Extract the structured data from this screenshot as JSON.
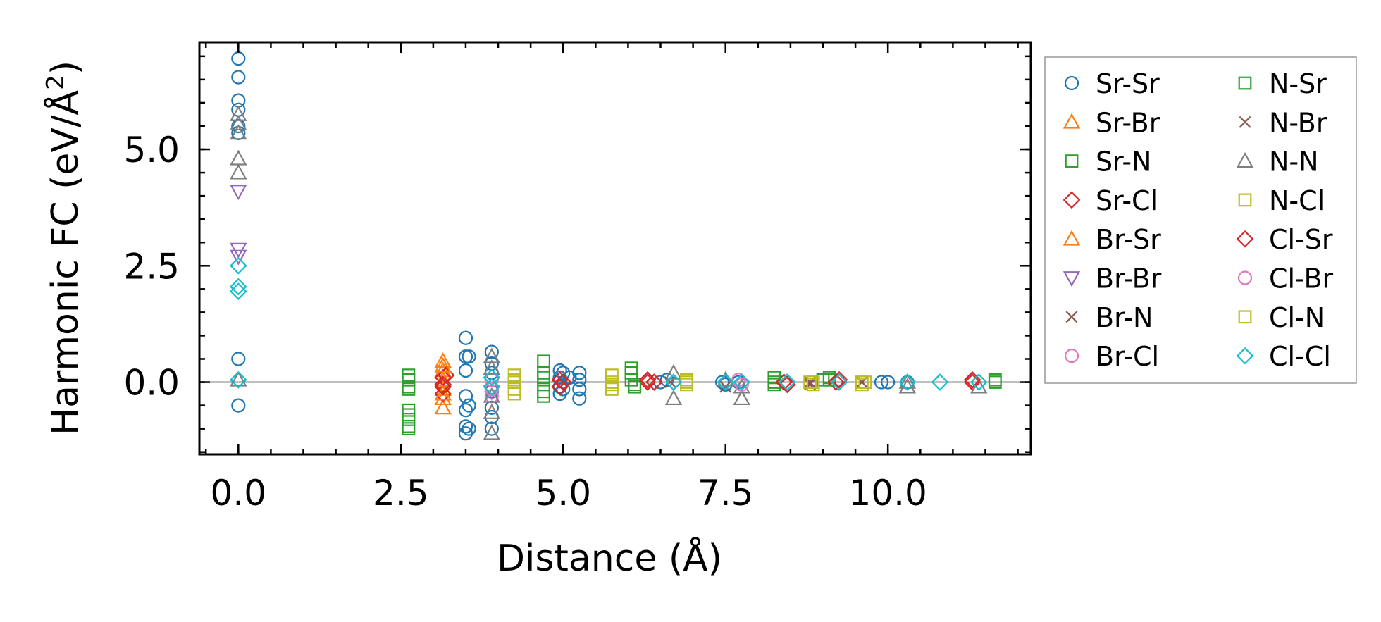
{
  "chart_data": {
    "type": "scatter",
    "title": "",
    "xlabel": "Distance (Å)",
    "ylabel_prefix": "Harmonic FC (eV/Å",
    "ylabel_sup": "2",
    "ylabel_suffix": ")",
    "xlim": [
      -0.6,
      12.2
    ],
    "ylim": [
      -1.55,
      7.3
    ],
    "xticks": [
      0.0,
      2.5,
      5.0,
      7.5,
      10.0
    ],
    "xtick_labels": [
      "0.0",
      "2.5",
      "5.0",
      "7.5",
      "10.0"
    ],
    "yticks": [
      0.0,
      2.5,
      5.0
    ],
    "ytick_labels": [
      "0.0",
      "2.5",
      "5.0"
    ],
    "x_minor_step": 0.5,
    "y_minor_step": 0.5,
    "zero_line": true,
    "grid": false,
    "legend_position": "outside-right",
    "legend_columns": 2,
    "series": [
      {
        "name": "Sr-Sr",
        "marker": "circle",
        "color": "#1f77b4",
        "points": [
          [
            0,
            6.95
          ],
          [
            0,
            6.55
          ],
          [
            0,
            6.05
          ],
          [
            0,
            5.85
          ],
          [
            0,
            5.5
          ],
          [
            0,
            5.35
          ],
          [
            0,
            0.5
          ],
          [
            0,
            -0.5
          ],
          [
            3.5,
            0.95
          ],
          [
            3.5,
            0.55
          ],
          [
            3.5,
            0.25
          ],
          [
            3.5,
            -0.3
          ],
          [
            3.5,
            -0.6
          ],
          [
            3.5,
            -0.95
          ],
          [
            3.5,
            -1.1
          ],
          [
            3.55,
            0.55
          ],
          [
            3.55,
            -0.5
          ],
          [
            3.55,
            -1.0
          ],
          [
            3.9,
            0.65
          ],
          [
            3.9,
            0.4
          ],
          [
            3.9,
            0.2
          ],
          [
            3.9,
            -0.2
          ],
          [
            3.9,
            -0.55
          ],
          [
            3.9,
            -0.75
          ],
          [
            3.9,
            -1.0
          ],
          [
            4.95,
            0.25
          ],
          [
            4.95,
            0.1
          ],
          [
            4.95,
            -0.1
          ],
          [
            4.95,
            -0.25
          ],
          [
            5.0,
            0.2
          ],
          [
            5.0,
            -0.15
          ],
          [
            5.25,
            0.2
          ],
          [
            5.25,
            0.05
          ],
          [
            5.25,
            -0.15
          ],
          [
            5.25,
            -0.35
          ],
          [
            5.1,
            0.1
          ],
          [
            6.5,
            0.0
          ],
          [
            6.6,
            0.05
          ],
          [
            7.45,
            0.0
          ],
          [
            7.5,
            -0.05
          ],
          [
            7.7,
            0.0
          ],
          [
            9.9,
            0.0
          ],
          [
            10.0,
            0.0
          ],
          [
            10.3,
            0.0
          ]
        ]
      },
      {
        "name": "Sr-Br",
        "marker": "triangle-up",
        "color": "#ff7f0e",
        "points": [
          [
            3.15,
            0.45
          ],
          [
            3.15,
            0.25
          ],
          [
            3.15,
            0.05
          ],
          [
            3.15,
            -0.15
          ],
          [
            3.15,
            -0.35
          ],
          [
            3.15,
            -0.55
          ]
        ]
      },
      {
        "name": "Sr-N",
        "marker": "square",
        "color": "#2ca02c",
        "points": [
          [
            2.62,
            0.15
          ],
          [
            2.62,
            -0.1
          ],
          [
            2.62,
            -0.6
          ],
          [
            2.62,
            -0.8
          ],
          [
            2.62,
            -1.0
          ],
          [
            4.7,
            0.45
          ],
          [
            4.7,
            0.2
          ],
          [
            4.7,
            -0.05
          ],
          [
            4.7,
            -0.3
          ],
          [
            6.05,
            0.3
          ],
          [
            6.05,
            0.05
          ],
          [
            6.1,
            -0.1
          ],
          [
            8.25,
            0.1
          ],
          [
            8.25,
            -0.05
          ],
          [
            9.0,
            0.05
          ],
          [
            9.1,
            0.1
          ],
          [
            11.65,
            0.05
          ]
        ]
      },
      {
        "name": "Sr-Cl",
        "marker": "diamond",
        "color": "#d62728",
        "points": [
          [
            3.15,
            0.1
          ],
          [
            3.15,
            -0.05
          ],
          [
            3.15,
            -0.25
          ],
          [
            3.2,
            0.15
          ],
          [
            4.95,
            0.05
          ],
          [
            4.95,
            -0.1
          ],
          [
            6.3,
            0.0
          ],
          [
            6.4,
            0.0
          ],
          [
            8.4,
            0.0
          ],
          [
            9.2,
            0.0
          ],
          [
            11.3,
            0.0
          ]
        ]
      },
      {
        "name": "Br-Sr",
        "marker": "triangle-up",
        "color": "#ff7f0e",
        "points": [
          [
            3.15,
            0.35
          ],
          [
            3.15,
            -0.25
          ]
        ]
      },
      {
        "name": "Br-Br",
        "marker": "triangle-down",
        "color": "#9467bd",
        "points": [
          [
            0,
            4.1
          ],
          [
            0,
            2.85
          ],
          [
            0,
            2.7
          ],
          [
            3.9,
            -0.2
          ]
        ]
      },
      {
        "name": "Br-N",
        "marker": "x",
        "color": "#8c564b",
        "points": [
          [
            8.8,
            0.0
          ],
          [
            9.6,
            0.0
          ]
        ]
      },
      {
        "name": "Br-Cl",
        "marker": "circle",
        "color": "#e377c2",
        "points": [
          [
            3.9,
            0.05
          ],
          [
            3.9,
            -0.3
          ],
          [
            7.7,
            0.05
          ]
        ]
      },
      {
        "name": "N-Sr",
        "marker": "square",
        "color": "#2ca02c",
        "points": [
          [
            2.62,
            0.05
          ],
          [
            2.62,
            -0.15
          ],
          [
            2.62,
            -0.7
          ],
          [
            2.62,
            -0.95
          ],
          [
            4.7,
            0.1
          ],
          [
            4.7,
            -0.2
          ],
          [
            6.05,
            0.2
          ],
          [
            6.1,
            -0.05
          ],
          [
            8.25,
            0.0
          ],
          [
            9.1,
            0.05
          ],
          [
            11.65,
            0.0
          ]
        ]
      },
      {
        "name": "N-Br",
        "marker": "x",
        "color": "#8c564b",
        "points": [
          [
            6.65,
            0.0
          ],
          [
            7.5,
            -0.1
          ],
          [
            8.8,
            -0.05
          ]
        ]
      },
      {
        "name": "N-N",
        "marker": "triangle-up",
        "color": "#7f7f7f",
        "points": [
          [
            0,
            5.75
          ],
          [
            0,
            5.55
          ],
          [
            0,
            5.35
          ],
          [
            0,
            4.8
          ],
          [
            0,
            4.5
          ],
          [
            0,
            0.05
          ],
          [
            3.9,
            0.55
          ],
          [
            3.9,
            0.3
          ],
          [
            3.9,
            -0.3
          ],
          [
            3.9,
            -0.65
          ],
          [
            3.9,
            -1.1
          ],
          [
            6.7,
            0.2
          ],
          [
            6.7,
            -0.35
          ],
          [
            7.5,
            0.05
          ],
          [
            7.75,
            -0.1
          ],
          [
            7.75,
            -0.35
          ],
          [
            10.3,
            0.0
          ],
          [
            10.3,
            -0.1
          ],
          [
            11.4,
            -0.1
          ]
        ]
      },
      {
        "name": "N-Cl",
        "marker": "square",
        "color": "#bcbd22",
        "points": [
          [
            4.25,
            0.15
          ],
          [
            4.25,
            0.0
          ],
          [
            4.25,
            -0.15
          ],
          [
            4.25,
            -0.25
          ],
          [
            5.75,
            0.15
          ],
          [
            5.75,
            0.0
          ],
          [
            5.75,
            -0.15
          ],
          [
            6.9,
            0.05
          ],
          [
            6.9,
            -0.05
          ],
          [
            8.8,
            0.0
          ],
          [
            8.85,
            -0.05
          ],
          [
            9.6,
            0.0
          ],
          [
            9.6,
            -0.05
          ]
        ]
      },
      {
        "name": "Cl-Sr",
        "marker": "diamond",
        "color": "#d62728",
        "points": [
          [
            3.15,
            -0.1
          ],
          [
            5.0,
            0.0
          ],
          [
            6.3,
            0.05
          ],
          [
            8.45,
            -0.05
          ],
          [
            9.25,
            0.05
          ],
          [
            11.3,
            0.05
          ]
        ]
      },
      {
        "name": "Cl-Br",
        "marker": "circle",
        "color": "#e377c2",
        "points": [
          [
            3.9,
            -0.15
          ],
          [
            7.75,
            -0.05
          ]
        ]
      },
      {
        "name": "Cl-N",
        "marker": "square",
        "color": "#bcbd22",
        "points": [
          [
            4.25,
            0.05
          ],
          [
            5.75,
            -0.05
          ],
          [
            6.9,
            0.0
          ],
          [
            8.85,
            0.0
          ],
          [
            9.65,
            0.0
          ]
        ]
      },
      {
        "name": "Cl-Cl",
        "marker": "diamond",
        "color": "#17becf",
        "points": [
          [
            0,
            2.5
          ],
          [
            0,
            2.05
          ],
          [
            0,
            1.95
          ],
          [
            0,
            0.05
          ],
          [
            3.9,
            0.1
          ],
          [
            3.9,
            -0.1
          ],
          [
            6.7,
            0.0
          ],
          [
            7.5,
            0.0
          ],
          [
            7.75,
            0.0
          ],
          [
            8.45,
            0.0
          ],
          [
            9.25,
            0.0
          ],
          [
            10.3,
            0.0
          ],
          [
            10.8,
            0.0
          ],
          [
            11.4,
            0.0
          ]
        ]
      }
    ]
  }
}
